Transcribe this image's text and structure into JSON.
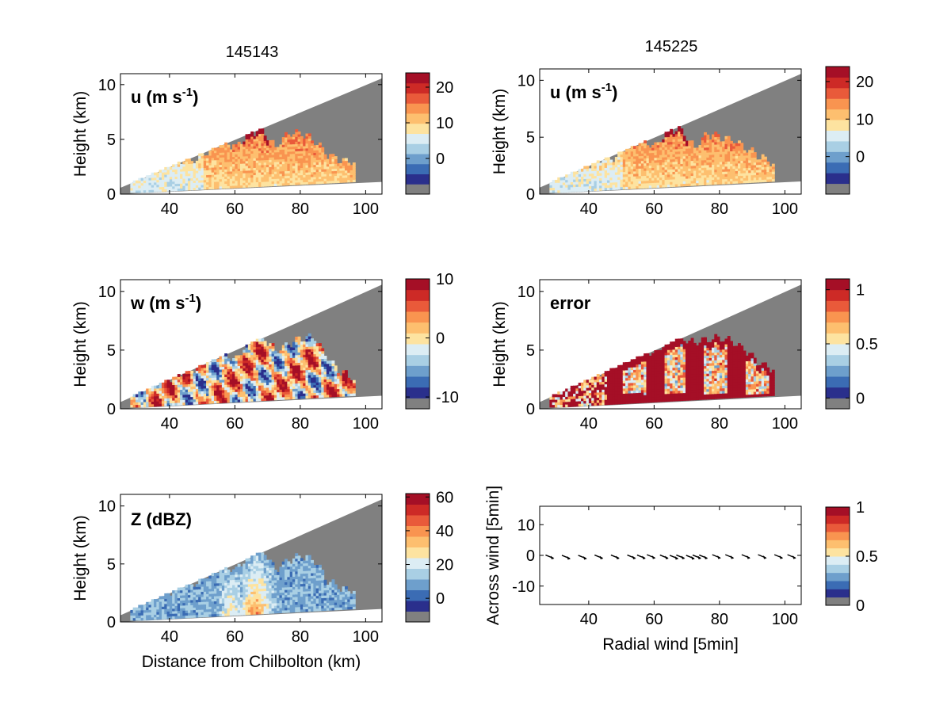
{
  "figure": {
    "colors": {
      "gray": "#808080",
      "palette": [
        "#2a2f8c",
        "#3b6cb4",
        "#6e9fcc",
        "#a9cfe4",
        "#dcedf4",
        "#fde3a0",
        "#fdbf6f",
        "#f99450",
        "#e95a3a",
        "#cd2a26",
        "#a50f26"
      ]
    },
    "columns": [
      "145143",
      "145225"
    ],
    "panels": [
      {
        "id": "u-left",
        "label": "u (m s",
        "label_sup": "-1",
        "label_tail": ")",
        "ylabel": "Height (km)",
        "xlabel": "",
        "colorbar_ticks": [
          "20",
          "10",
          "0"
        ]
      },
      {
        "id": "u-right",
        "label": "u (m s",
        "label_sup": "-1",
        "label_tail": ")",
        "ylabel": "Height (km)",
        "xlabel": "",
        "colorbar_ticks": [
          "20",
          "10",
          "0"
        ]
      },
      {
        "id": "w-left",
        "label": "w (m s",
        "label_sup": "-1",
        "label_tail": ")",
        "ylabel": "Height (km)",
        "xlabel": "",
        "colorbar_ticks": [
          "10",
          "0",
          "-10"
        ]
      },
      {
        "id": "error-right",
        "label": "error",
        "label_sup": "",
        "label_tail": "",
        "ylabel": "Height (km)",
        "xlabel": "",
        "colorbar_ticks": [
          "1",
          "0.5",
          "0"
        ]
      },
      {
        "id": "z-left",
        "label": "Z (dBZ)",
        "label_sup": "",
        "label_tail": "",
        "ylabel": "Height (km)",
        "xlabel": "Distance from Chilbolton (km)",
        "colorbar_ticks": [
          "60",
          "40",
          "20",
          "0"
        ]
      },
      {
        "id": "wind-right",
        "label": "",
        "label_sup": "",
        "label_tail": "",
        "ylabel": "Across wind [5min]",
        "xlabel": "Radial wind [5min]",
        "colorbar_ticks": [
          "1",
          "0.5",
          "0"
        ]
      }
    ]
  },
  "chart_data": [
    {
      "type": "heatmap",
      "title": "145143",
      "quantity": "u (m s-1)",
      "xlabel": "",
      "ylabel": "Height (km)",
      "xlim": [
        25,
        105
      ],
      "ylim": [
        0,
        11
      ],
      "xticks": [
        40,
        60,
        80,
        100
      ],
      "yticks": [
        0,
        5,
        10
      ],
      "clim": [
        -10,
        24
      ],
      "colorbar_ticks": [
        20,
        10,
        0
      ],
      "echo_top_profile": {
        "x": [
          28,
          32,
          36,
          40,
          44,
          48,
          52,
          56,
          60,
          64,
          68,
          72,
          76,
          80,
          84,
          88,
          92,
          96
        ],
        "top": [
          2.2,
          2.5,
          2.9,
          2.6,
          3.1,
          3.0,
          4.0,
          4.7,
          4.2,
          5.6,
          5.7,
          4.2,
          5.4,
          5.5,
          4.7,
          3.5,
          3.0,
          2.8
        ]
      },
      "dominant_value": 10
    },
    {
      "type": "heatmap",
      "title": "145225",
      "quantity": "u (m s-1)",
      "xlabel": "",
      "ylabel": "Height (km)",
      "xlim": [
        25,
        105
      ],
      "ylim": [
        0,
        11
      ],
      "xticks": [
        40,
        60,
        80,
        100
      ],
      "yticks": [
        0,
        5,
        10
      ],
      "clim": [
        -10,
        24
      ],
      "colorbar_ticks": [
        20,
        10,
        0
      ],
      "echo_top_profile": {
        "x": [
          28,
          32,
          36,
          40,
          44,
          48,
          52,
          56,
          60,
          64,
          68,
          72,
          76,
          80,
          84,
          88,
          92,
          96
        ],
        "top": [
          2.0,
          2.3,
          2.8,
          2.5,
          3.0,
          3.2,
          4.3,
          4.6,
          4.0,
          5.7,
          5.5,
          4.0,
          5.2,
          4.9,
          4.6,
          3.8,
          3.2,
          2.6
        ]
      },
      "dominant_value": 10
    },
    {
      "type": "heatmap",
      "title": "",
      "quantity": "w (m s-1)",
      "xlabel": "",
      "ylabel": "Height (km)",
      "xlim": [
        25,
        105
      ],
      "ylim": [
        0,
        11
      ],
      "xticks": [
        40,
        60,
        80,
        100
      ],
      "yticks": [
        0,
        5,
        10
      ],
      "clim": [
        -12,
        10
      ],
      "colorbar_ticks": [
        10,
        0,
        -10
      ],
      "echo_top_profile": {
        "x": [
          28,
          32,
          36,
          40,
          44,
          48,
          52,
          56,
          60,
          64,
          68,
          72,
          76,
          80,
          84,
          88,
          92,
          96
        ],
        "top": [
          2.0,
          2.4,
          2.8,
          2.5,
          3.2,
          3.4,
          4.2,
          4.6,
          4.0,
          5.8,
          6.2,
          4.8,
          5.4,
          5.9,
          6.0,
          4.2,
          3.0,
          2.5
        ]
      },
      "dominant_value": 0
    },
    {
      "type": "heatmap",
      "title": "",
      "quantity": "error",
      "xlabel": "",
      "ylabel": "Height (km)",
      "xlim": [
        25,
        105
      ],
      "ylim": [
        0,
        11
      ],
      "xticks": [
        40,
        60,
        80,
        100
      ],
      "yticks": [
        0,
        5,
        10
      ],
      "clim": [
        -0.1,
        1.1
      ],
      "colorbar_ticks": [
        1,
        0.5,
        0
      ],
      "echo_top_profile": {
        "x": [
          28,
          32,
          36,
          40,
          44,
          48,
          52,
          56,
          60,
          64,
          68,
          72,
          76,
          80,
          84,
          88,
          92,
          96
        ],
        "top": [
          2.0,
          2.4,
          2.8,
          2.6,
          3.2,
          3.8,
          4.4,
          5.0,
          4.6,
          5.9,
          5.9,
          5.5,
          5.8,
          5.9,
          5.6,
          4.8,
          3.8,
          3.2
        ]
      },
      "dominant_value": 1
    },
    {
      "type": "heatmap",
      "title": "",
      "quantity": "Z (dBZ)",
      "xlabel": "Distance from Chilbolton (km)",
      "ylabel": "Height (km)",
      "xlim": [
        25,
        105
      ],
      "ylim": [
        0,
        11
      ],
      "xticks": [
        40,
        60,
        80,
        100
      ],
      "yticks": [
        0,
        5,
        10
      ],
      "clim": [
        -14,
        62
      ],
      "colorbar_ticks": [
        60,
        40,
        20,
        0
      ],
      "echo_top_profile": {
        "x": [
          28,
          32,
          36,
          40,
          44,
          48,
          52,
          56,
          60,
          64,
          68,
          72,
          76,
          80,
          84,
          88,
          92,
          96
        ],
        "top": [
          2.2,
          2.6,
          2.7,
          2.5,
          3.6,
          3.2,
          4.2,
          4.6,
          4.4,
          5.8,
          6.2,
          4.4,
          5.2,
          5.6,
          5.2,
          3.4,
          2.8,
          2.6
        ]
      },
      "dominant_value": 10
    },
    {
      "type": "scatter",
      "title": "",
      "xlabel": "Radial wind [5min]",
      "ylabel": "Across wind [5min]",
      "xlim": [
        25,
        105
      ],
      "ylim": [
        -16,
        16
      ],
      "xticks": [
        40,
        60,
        80,
        100
      ],
      "yticks": [
        10,
        0,
        -10
      ],
      "clim": [
        0,
        1
      ],
      "colorbar_ticks": [
        1,
        0.5,
        0
      ],
      "x": [
        28,
        33,
        38,
        43,
        48,
        53,
        56,
        59,
        63,
        66,
        68,
        71,
        73,
        75,
        79,
        83,
        88,
        93,
        98,
        102
      ],
      "y": [
        -0.4,
        -0.5,
        -0.5,
        -0.4,
        -0.4,
        -0.4,
        -0.4,
        -0.3,
        -0.4,
        -0.5,
        -0.4,
        -0.5,
        -0.4,
        -0.4,
        -0.3,
        -0.3,
        -0.3,
        -0.3,
        -0.3,
        -0.3
      ]
    }
  ]
}
